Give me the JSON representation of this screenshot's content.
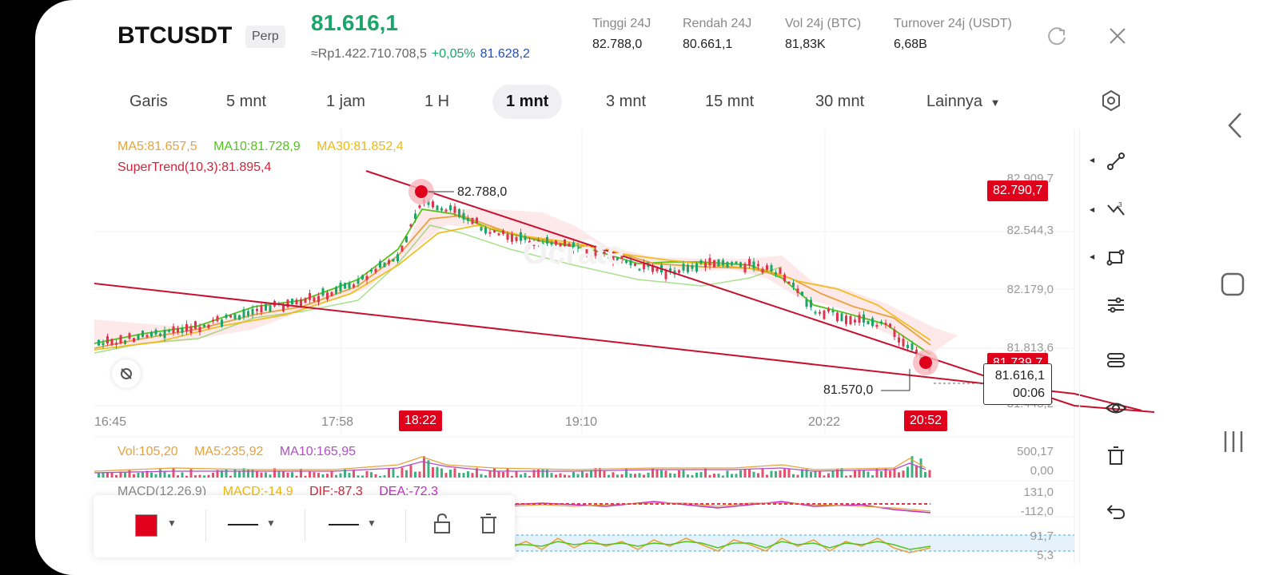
{
  "header": {
    "symbol": "BTCUSDT",
    "type_badge": "Perp",
    "last_price": "81.616,1",
    "idr_price": "≈Rp1.422.710.708,5",
    "change_pct": "+0,05%",
    "mark_price": "81.628,2",
    "stats": [
      {
        "label": "Tinggi 24J",
        "value": "82.788,0"
      },
      {
        "label": "Rendah 24J",
        "value": "80.661,1"
      },
      {
        "label": "Vol 24j (BTC)",
        "value": "81,83K"
      },
      {
        "label": "Turnover 24j (USDT)",
        "value": "6,68B"
      }
    ]
  },
  "timeframes": [
    "Garis",
    "5 mnt",
    "1 jam",
    "1 H",
    "1 mnt",
    "3 mnt",
    "15 mnt",
    "30 mnt",
    "Lainnya"
  ],
  "active_timeframe": "1 mnt",
  "indicators": {
    "ma5": "MA5:81.657,5",
    "ma10": "MA10:81.728,9",
    "ma30": "MA30:81.852,4",
    "supertrend": "SuperTrend(10,3):81.895,4",
    "vol": "Vol:105,20",
    "vol_ma5": "MA5:235,92",
    "vol_ma10": "MA10:165,95",
    "macd": "MACD(12,26,9)",
    "macd_val": "MACD:-14,9",
    "dif": "DIF:-87,3",
    "dea": "DEA:-72,3"
  },
  "price_axis": [
    "82.909,7",
    "82.544,3",
    "82.179,0",
    "81.813,6",
    "81.448,2"
  ],
  "price_tags": {
    "top": "82.790,7",
    "current": "81.739,7",
    "last": "81.616,1",
    "countdown": "00:06"
  },
  "annotations": {
    "high": "82.788,0",
    "low": "81.570,0"
  },
  "time_axis": [
    "16:45",
    "17:58",
    "19:10",
    "20:22"
  ],
  "time_tags": [
    "18:22",
    "20:52"
  ],
  "vol_axis": [
    "500,17",
    "0,00"
  ],
  "macd_axis": [
    "131,0",
    "-112,0"
  ],
  "kdj_axis": [
    "91,7",
    "5,3"
  ],
  "colors": {
    "up": "#1aa56b",
    "down": "#e0334e",
    "ma5": "#e6a23c",
    "ma10": "#52c41a",
    "ma30": "#f0b90b",
    "supertrend": "#d0243b",
    "drawing": "#e0001b"
  },
  "side_tools": [
    "trendline-icon",
    "fib-icon",
    "shape-icon",
    "settings-sliders-icon",
    "template-icon",
    "eye-icon",
    "trash-icon",
    "undo-icon"
  ],
  "draw_toolbar": [
    "color-swatch",
    "line-style-solid",
    "line-width",
    "unlock-icon",
    "trash-icon"
  ]
}
